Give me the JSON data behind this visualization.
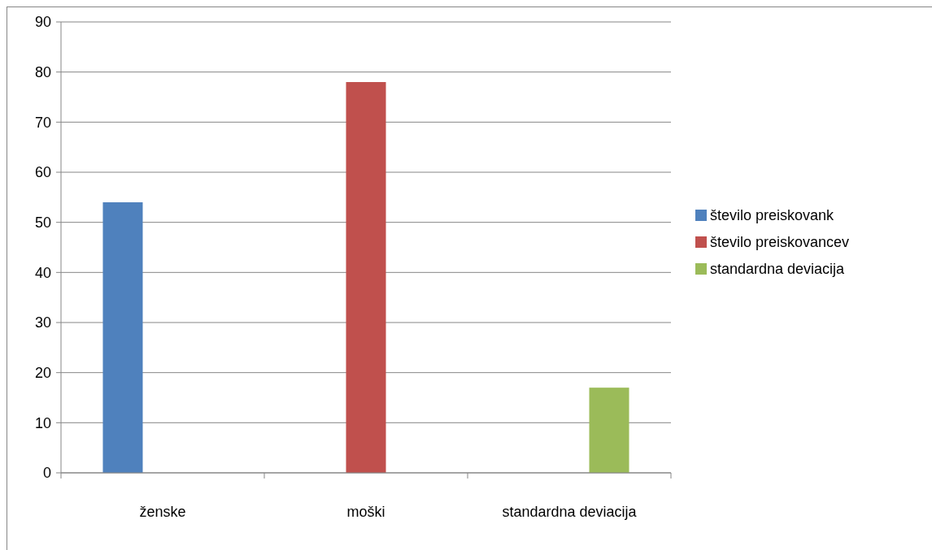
{
  "chart_data": {
    "type": "bar",
    "categories": [
      "ženske",
      "moški",
      "standardna deviacija"
    ],
    "series": [
      {
        "name": "število preiskovank",
        "color": "#4f81bd",
        "values": [
          54,
          null,
          null
        ]
      },
      {
        "name": "število preiskovancev",
        "color": "#c0504d",
        "values": [
          null,
          78,
          null
        ]
      },
      {
        "name": "standardna deviacija",
        "color": "#9bbb59",
        "values": [
          null,
          null,
          17
        ]
      }
    ],
    "ylim": [
      0,
      90
    ],
    "yticks": [
      0,
      10,
      20,
      30,
      40,
      50,
      60,
      70,
      80,
      90
    ],
    "grid": "y",
    "legend": "right"
  }
}
